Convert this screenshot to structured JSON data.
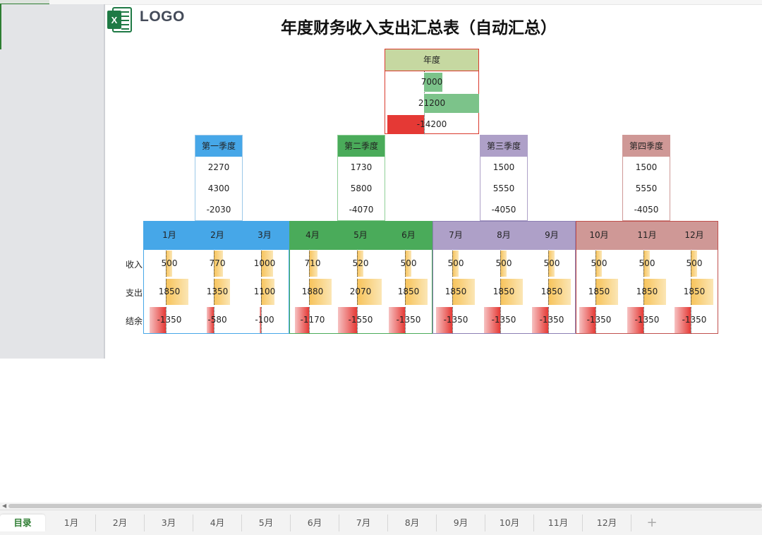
{
  "app": {
    "logo_text": "LOGO",
    "title": "年度财务收入支出汇总表（自动汇总）"
  },
  "colors": {
    "year_head": "#c6d8a1",
    "year_border": "#d9392d",
    "q1": "#46a7e8",
    "q2": "#4aab5a",
    "q3": "#aea0c8",
    "q4": "#cf9896",
    "income_bar": "#f7c35a",
    "neg_bar": "#e53935",
    "year_pos_bar": "#7cc38a"
  },
  "year": {
    "label": "年度",
    "income": "7000",
    "expense": "21200",
    "balance": "-14200",
    "income_v": 7000,
    "expense_v": 21200,
    "balance_v": -14200
  },
  "quarters": [
    {
      "label": "第一季度",
      "income": "2270",
      "expense": "4300",
      "balance": "-2030"
    },
    {
      "label": "第二季度",
      "income": "1730",
      "expense": "5800",
      "balance": "-4070"
    },
    {
      "label": "第三季度",
      "income": "1500",
      "expense": "5550",
      "balance": "-4050"
    },
    {
      "label": "第四季度",
      "income": "1500",
      "expense": "5550",
      "balance": "-4050"
    }
  ],
  "row_labels": {
    "income": "收入",
    "expense": "支出",
    "balance": "结余"
  },
  "months": [
    {
      "label": "1月",
      "income": "500",
      "expense": "1850",
      "balance": "-1350",
      "i": 500,
      "e": 1850,
      "b": -1350
    },
    {
      "label": "2月",
      "income": "770",
      "expense": "1350",
      "balance": "-580",
      "i": 770,
      "e": 1350,
      "b": -580
    },
    {
      "label": "3月",
      "income": "1000",
      "expense": "1100",
      "balance": "-100",
      "i": 1000,
      "e": 1100,
      "b": -100
    },
    {
      "label": "4月",
      "income": "710",
      "expense": "1880",
      "balance": "-1170",
      "i": 710,
      "e": 1880,
      "b": -1170
    },
    {
      "label": "5月",
      "income": "520",
      "expense": "2070",
      "balance": "-1550",
      "i": 520,
      "e": 2070,
      "b": -1550
    },
    {
      "label": "6月",
      "income": "500",
      "expense": "1850",
      "balance": "-1350",
      "i": 500,
      "e": 1850,
      "b": -1350
    },
    {
      "label": "7月",
      "income": "500",
      "expense": "1850",
      "balance": "-1350",
      "i": 500,
      "e": 1850,
      "b": -1350
    },
    {
      "label": "8月",
      "income": "500",
      "expense": "1850",
      "balance": "-1350",
      "i": 500,
      "e": 1850,
      "b": -1350
    },
    {
      "label": "9月",
      "income": "500",
      "expense": "1850",
      "balance": "-1350",
      "i": 500,
      "e": 1850,
      "b": -1350
    },
    {
      "label": "10月",
      "income": "500",
      "expense": "1850",
      "balance": "-1350",
      "i": 500,
      "e": 1850,
      "b": -1350
    },
    {
      "label": "11月",
      "income": "500",
      "expense": "1850",
      "balance": "-1350",
      "i": 500,
      "e": 1850,
      "b": -1350
    },
    {
      "label": "12月",
      "income": "500",
      "expense": "1850",
      "balance": "-1350",
      "i": 500,
      "e": 1850,
      "b": -1350
    }
  ],
  "sheet_tabs": [
    "目录",
    "1月",
    "2月",
    "3月",
    "4月",
    "5月",
    "6月",
    "7月",
    "8月",
    "9月",
    "10月",
    "11月",
    "12月"
  ],
  "add_tab": "+"
}
